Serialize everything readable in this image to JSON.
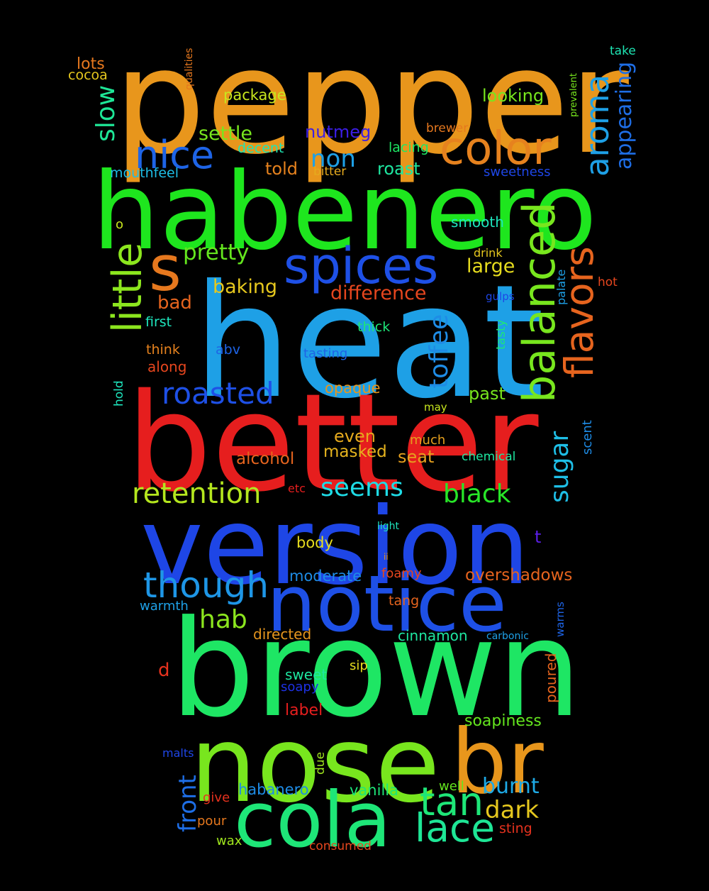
{
  "background": "#000000",
  "words": [
    {
      "text": "pepper",
      "color": "#e8961c",
      "rotated": false
    },
    {
      "text": "habenero",
      "color": "#1ee61e",
      "rotated": false
    },
    {
      "text": "heat",
      "color": "#1ea0e6",
      "rotated": false
    },
    {
      "text": "better",
      "color": "#e61e1e",
      "rotated": false
    },
    {
      "text": "version",
      "color": "#1e46e6",
      "rotated": false
    },
    {
      "text": "brown",
      "color": "#1ee664",
      "rotated": false
    },
    {
      "text": "nose",
      "color": "#78e61e",
      "rotated": false
    },
    {
      "text": "notice",
      "color": "#1e50e6",
      "rotated": false
    },
    {
      "text": "br",
      "color": "#e8961c",
      "rotated": false
    },
    {
      "text": "cola",
      "color": "#1ee678",
      "rotated": false
    },
    {
      "text": "s",
      "color": "#e6781e",
      "rotated": false
    },
    {
      "text": "spices",
      "color": "#1e50e6",
      "rotated": false
    },
    {
      "text": "color",
      "color": "#e6821e",
      "rotated": false
    },
    {
      "text": "nice",
      "color": "#1e64e6",
      "rotated": false
    },
    {
      "text": "balanced",
      "color": "#78e61e",
      "rotated": true
    },
    {
      "text": "flavors",
      "color": "#e6641e",
      "rotated": true
    },
    {
      "text": "aroma",
      "color": "#1ea0e6",
      "rotated": true
    },
    {
      "text": "little",
      "color": "#8ce61e",
      "rotated": true
    },
    {
      "text": "though",
      "color": "#1e96e6",
      "rotated": false
    },
    {
      "text": "tan",
      "color": "#1ee678",
      "rotated": false
    },
    {
      "text": "lace",
      "color": "#1ee696",
      "rotated": false
    },
    {
      "text": "roasted",
      "color": "#1e50e6",
      "rotated": false
    },
    {
      "text": "retention",
      "color": "#b4e61e",
      "rotated": false
    },
    {
      "text": "seems",
      "color": "#1edce6",
      "rotated": false
    },
    {
      "text": "black",
      "color": "#28e628",
      "rotated": false
    },
    {
      "text": "hab",
      "color": "#8ce61e",
      "rotated": false
    },
    {
      "text": "toffee",
      "color": "#1e8ce6",
      "rotated": true
    },
    {
      "text": "sugar",
      "color": "#1ebee6",
      "rotated": true
    },
    {
      "text": "appearing",
      "color": "#1e6ee6",
      "rotated": true
    },
    {
      "text": "slow",
      "color": "#1ee696",
      "rotated": true
    },
    {
      "text": "front",
      "color": "#1e6ee6",
      "rotated": true
    },
    {
      "text": "non",
      "color": "#1ea0e6",
      "rotated": false
    },
    {
      "text": "pretty",
      "color": "#64e61e",
      "rotated": false
    },
    {
      "text": "dark",
      "color": "#e6c81e",
      "rotated": false
    },
    {
      "text": "burnt",
      "color": "#1eaae6",
      "rotated": false
    },
    {
      "text": "settle",
      "color": "#78e61e",
      "rotated": false
    },
    {
      "text": "difference",
      "color": "#e6461e",
      "rotated": false
    },
    {
      "text": "baking",
      "color": "#e6c81e",
      "rotated": false
    },
    {
      "text": "large",
      "color": "#e6dc1e",
      "rotated": false
    },
    {
      "text": "looking",
      "color": "#78e61e",
      "rotated": false
    },
    {
      "text": "package",
      "color": "#c8e61e",
      "rotated": false
    },
    {
      "text": "nutmeg",
      "color": "#3c1ee6",
      "rotated": false
    },
    {
      "text": "roast",
      "color": "#1ee6a0",
      "rotated": false
    },
    {
      "text": "bad",
      "color": "#e6641e",
      "rotated": false
    },
    {
      "text": "told",
      "color": "#e6821e",
      "rotated": false
    },
    {
      "text": "alcohol",
      "color": "#e6641e",
      "rotated": false
    },
    {
      "text": "masked",
      "color": "#e6b41e",
      "rotated": false
    },
    {
      "text": "seat",
      "color": "#e6a01e",
      "rotated": false
    },
    {
      "text": "even",
      "color": "#e6aa1e",
      "rotated": false
    },
    {
      "text": "opaque",
      "color": "#e6961e",
      "rotated": false
    },
    {
      "text": "past",
      "color": "#78e61e",
      "rotated": false
    },
    {
      "text": "overshadows",
      "color": "#e6641e",
      "rotated": false
    },
    {
      "text": "moderate",
      "color": "#1e8ce6",
      "rotated": false
    },
    {
      "text": "body",
      "color": "#e6dc1e",
      "rotated": false
    },
    {
      "text": "habanero",
      "color": "#1e8ce6",
      "rotated": false
    },
    {
      "text": "vanilla",
      "color": "#1ee678",
      "rotated": false
    },
    {
      "text": "soapiness",
      "color": "#64e61e",
      "rotated": false
    },
    {
      "text": "cinnamon",
      "color": "#1ee6a0",
      "rotated": false
    },
    {
      "text": "label",
      "color": "#e61e1e",
      "rotated": false
    },
    {
      "text": "sweet",
      "color": "#1ee6a0",
      "rotated": false
    },
    {
      "text": "smooth",
      "color": "#1ee6be",
      "rotated": false
    },
    {
      "text": "directed",
      "color": "#e6961e",
      "rotated": false
    },
    {
      "text": "lots",
      "color": "#e6781e",
      "rotated": false
    },
    {
      "text": "cocoa",
      "color": "#e6c81e",
      "rotated": false
    },
    {
      "text": "decent",
      "color": "#1ee6b4",
      "rotated": false
    },
    {
      "text": "lacing",
      "color": "#1ee664",
      "rotated": false
    },
    {
      "text": "bitter",
      "color": "#e6aa1e",
      "rotated": false
    },
    {
      "text": "brewer",
      "color": "#e6781e",
      "rotated": false
    },
    {
      "text": "sweetness",
      "color": "#1e46e6",
      "rotated": false
    },
    {
      "text": "mouthfeel",
      "color": "#1ebee6",
      "rotated": false
    },
    {
      "text": "take",
      "color": "#1ee6b4",
      "rotated": false
    },
    {
      "text": "thick",
      "color": "#1ee678",
      "rotated": false
    },
    {
      "text": "tasting",
      "color": "#1e64e6",
      "rotated": false
    },
    {
      "text": "abv",
      "color": "#1e64e6",
      "rotated": false
    },
    {
      "text": "think",
      "color": "#e6821e",
      "rotated": false
    },
    {
      "text": "along",
      "color": "#e6461e",
      "rotated": false
    },
    {
      "text": "first",
      "color": "#1ee6be",
      "rotated": false
    },
    {
      "text": "drink",
      "color": "#e6c81e",
      "rotated": false
    },
    {
      "text": "hot",
      "color": "#e6461e",
      "rotated": false
    },
    {
      "text": "gulps",
      "color": "#1e46e6",
      "rotated": false
    },
    {
      "text": "may",
      "color": "#c8e61e",
      "rotated": false
    },
    {
      "text": "much",
      "color": "#e6a01e",
      "rotated": false
    },
    {
      "text": "chemical",
      "color": "#1ee6a0",
      "rotated": false
    },
    {
      "text": "etc",
      "color": "#e61e1e",
      "rotated": false
    },
    {
      "text": "light",
      "color": "#1ee6be",
      "rotated": false
    },
    {
      "text": "foamy",
      "color": "#e6461e",
      "rotated": false
    },
    {
      "text": "tang",
      "color": "#e6641e",
      "rotated": false
    },
    {
      "text": "warmth",
      "color": "#1ea0e6",
      "rotated": false
    },
    {
      "text": "carbonic",
      "color": "#1ea0e6",
      "rotated": false
    },
    {
      "text": "d",
      "color": "#e6321e",
      "rotated": false
    },
    {
      "text": "sip",
      "color": "#e6dc1e",
      "rotated": false
    },
    {
      "text": "soapy",
      "color": "#1e32e6",
      "rotated": false
    },
    {
      "text": "malts",
      "color": "#1e46e6",
      "rotated": false
    },
    {
      "text": "well",
      "color": "#64e61e",
      "rotated": false
    },
    {
      "text": "give",
      "color": "#e6321e",
      "rotated": false
    },
    {
      "text": "pour",
      "color": "#e6781e",
      "rotated": false
    },
    {
      "text": "wax",
      "color": "#a0e61e",
      "rotated": false
    },
    {
      "text": "consumed",
      "color": "#e6461e",
      "rotated": false
    },
    {
      "text": "sting",
      "color": "#e6321e",
      "rotated": false
    },
    {
      "text": "t",
      "color": "#5a1ee6",
      "rotated": false
    },
    {
      "text": "o",
      "color": "#c8e61e",
      "rotated": false
    },
    {
      "text": "ii",
      "color": "#e6961e",
      "rotated": false
    },
    {
      "text": "qualities",
      "color": "#e6781e",
      "rotated": true
    },
    {
      "text": "prevalent",
      "color": "#78e61e",
      "rotated": true
    },
    {
      "text": "hold",
      "color": "#1ee6be",
      "rotated": true
    },
    {
      "text": "tasty",
      "color": "#1ee678",
      "rotated": true
    },
    {
      "text": "palate",
      "color": "#1ea0e6",
      "rotated": true
    },
    {
      "text": "scent",
      "color": "#1e8ce6",
      "rotated": true
    },
    {
      "text": "warms",
      "color": "#1e64e6",
      "rotated": true
    },
    {
      "text": "poured",
      "color": "#e6641e",
      "rotated": true
    },
    {
      "text": "due",
      "color": "#a0e61e",
      "rotated": true
    }
  ]
}
